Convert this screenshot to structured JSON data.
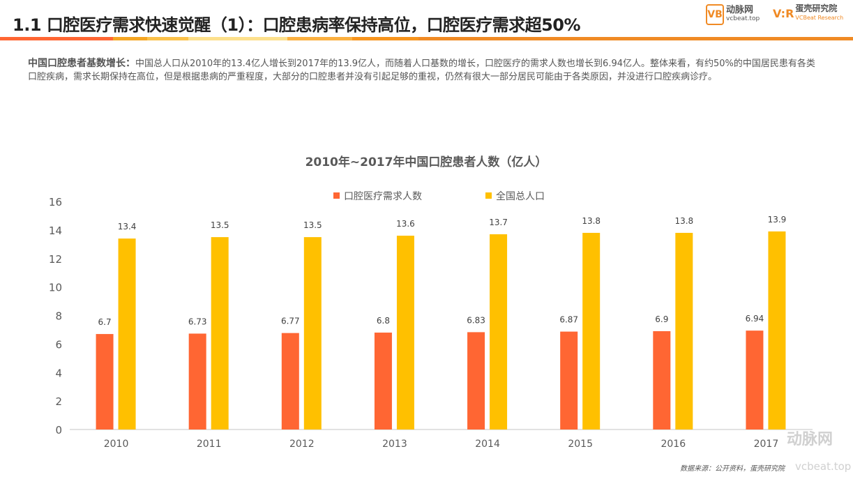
{
  "header": {
    "title": "1.1 口腔医疗需求快速觉醒（1）：口腔患病率保持高位，口腔医疗需求超50%",
    "logo1": {
      "mark": "VB",
      "name": "动脉网",
      "url": "vcbeat.top"
    },
    "logo2": {
      "mark": "V:R",
      "name": "蛋壳研究院",
      "en": "VCBeat Research"
    },
    "stripe_colors": [
      "#ff6633",
      "#f5a623",
      "#fbc14a",
      "#fde08c",
      "#fbb040",
      "#f7941d",
      "#f08a24"
    ]
  },
  "intro": {
    "lead": "中国口腔患者基数增长：",
    "body": "中国总人口从2010年的13.4亿人增长到2017年的13.9亿人，而随着人口基数的增长，口腔医疗的需求人数也增长到6.94亿人。整体来看，有约50%的中国居民患有各类口腔疾病，需求长期保持在高位，但是根据患病的严重程度，大部分的口腔患者并没有引起足够的重视，仍然有很大一部分居民可能由于各类原因，并没进行口腔疾病诊疗。"
  },
  "chart_data": {
    "type": "bar",
    "title": "2010年~2017年中国口腔患者人数（亿人）",
    "categories": [
      "2010",
      "2011",
      "2012",
      "2013",
      "2014",
      "2015",
      "2016",
      "2017"
    ],
    "series": [
      {
        "name": "口腔医疗需求人数",
        "color": "#ff6633",
        "values": [
          6.7,
          6.73,
          6.77,
          6.8,
          6.83,
          6.87,
          6.9,
          6.94
        ]
      },
      {
        "name": "全国总人口",
        "color": "#ffc000",
        "values": [
          13.4,
          13.5,
          13.5,
          13.6,
          13.7,
          13.8,
          13.8,
          13.9
        ]
      }
    ],
    "ylim": [
      0,
      16
    ],
    "yticks": [
      0,
      2,
      4,
      6,
      8,
      10,
      12,
      14,
      16
    ],
    "grid": false,
    "legend": "top"
  },
  "source": "数据来源：公开资料，蛋壳研究院",
  "watermark": {
    "name": "动脉网",
    "url": "vcbeat.top"
  }
}
